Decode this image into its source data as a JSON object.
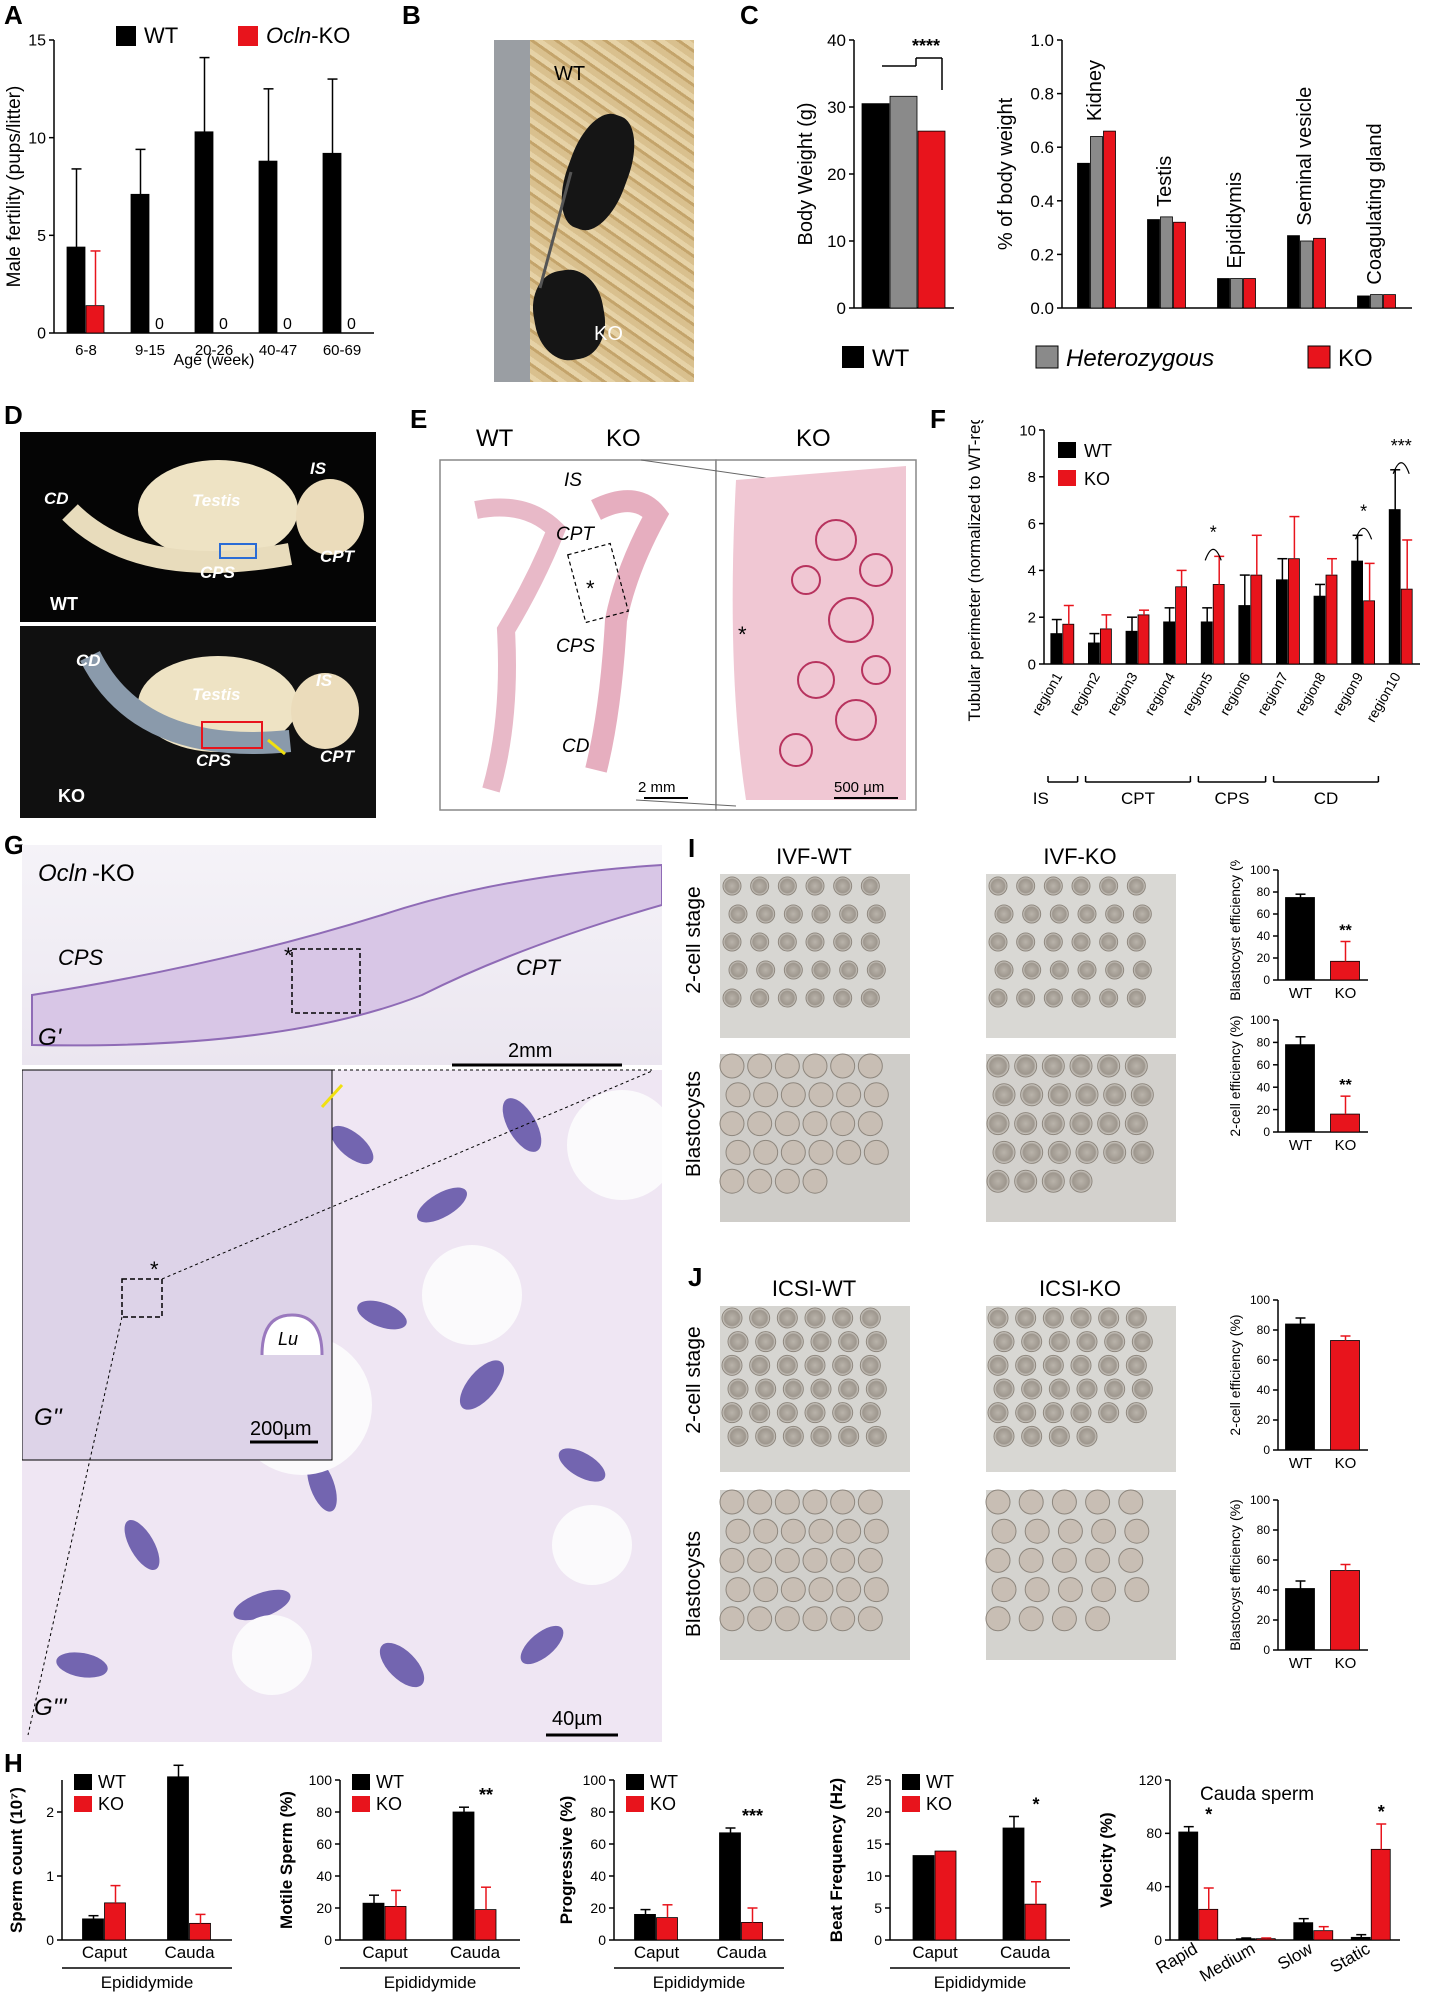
{
  "panels": {
    "A": "A",
    "B": "B",
    "C": "C",
    "D": "D",
    "E": "E",
    "F": "F",
    "G": "G",
    "H": "H",
    "I": "I",
    "J": "J"
  },
  "colors": {
    "wt": "#000000",
    "het": "#8a8a8a",
    "ko": "#e8141c",
    "scale": "#000000"
  },
  "legend": {
    "wt": "WT",
    "ko": "KO",
    "ko_prefix": "Ocln",
    "ko_suffix": "-KO",
    "het": "Heterozygous"
  },
  "b": {
    "wt": "WT",
    "ko": "KO"
  },
  "d": {
    "cd": "CD",
    "testis": "Testis",
    "is": "IS",
    "cpt": "CPT",
    "cps": "CPS",
    "wt": "WT",
    "ko": "KO"
  },
  "e": {
    "wt": "WT",
    "ko": "KO",
    "ko2": "KO",
    "is": "IS",
    "cpt": "CPT",
    "cps": "CPS",
    "cd": "CD",
    "star": "*",
    "scale1": "2 mm",
    "scale2": "500 µm"
  },
  "g": {
    "title_prefix": "Ocln",
    "title_suffix": "-KO",
    "cps": "CPS",
    "cpt": "CPT",
    "g1": "G'",
    "g2": "G''",
    "g3": "G'''",
    "lu": "Lu",
    "star": "*",
    "s1": "2mm",
    "s2": "200µm",
    "s3": "40µm"
  },
  "i": {
    "col1": "IVF-WT",
    "col2": "IVF-KO",
    "row1": "2-cell stage",
    "row2": "Blastocysts"
  },
  "j": {
    "col1": "ICSI-WT",
    "col2": "ICSI-KO",
    "row1": "2-cell stage",
    "row2": "Blastocysts"
  },
  "f_groups": {
    "is": "IS",
    "cpt": "CPT",
    "cps": "CPS",
    "cd": "CD"
  },
  "h_group": "Epididymide",
  "chart_data": [
    {
      "id": "A",
      "type": "bar",
      "ylabel": "Male fertility (pups/litter)",
      "xlabel": "Age (week)",
      "categories": [
        "6-8",
        "9-15",
        "20-26",
        "40-47",
        "60-69"
      ],
      "ylim": [
        0,
        15
      ],
      "yticks": [
        0,
        5,
        10,
        15
      ],
      "series": [
        {
          "name": "WT",
          "values": [
            4.4,
            7.1,
            10.3,
            8.8,
            9.2
          ],
          "err": [
            4.0,
            2.3,
            3.8,
            3.7,
            3.8
          ]
        },
        {
          "name": "KO",
          "values": [
            1.4,
            0,
            0,
            0,
            0
          ],
          "err": [
            2.8,
            0,
            0,
            0,
            0
          ]
        }
      ],
      "value_labels": [
        "",
        "0",
        "0",
        "0",
        "0"
      ]
    },
    {
      "id": "C1",
      "type": "bar",
      "ylabel": "Body Weight (g)",
      "ylim": [
        0,
        40
      ],
      "yticks": [
        0,
        10,
        20,
        30,
        40
      ],
      "series": [
        {
          "name": "WT",
          "values": [
            30.5
          ]
        },
        {
          "name": "Heterozygous",
          "values": [
            31.6
          ]
        },
        {
          "name": "KO",
          "values": [
            26.4
          ]
        }
      ],
      "sig": "****"
    },
    {
      "id": "C2",
      "type": "bar",
      "ylabel": "% of body weight",
      "ylim": [
        0,
        1.0
      ],
      "yticks": [
        "0.0",
        "0.2",
        "0.4",
        "0.6",
        "0.8",
        "1.0"
      ],
      "categories": [
        "Kidney",
        "Testis",
        "Epididymis",
        "Seminal vesicle",
        "Coagulating gland"
      ],
      "series": [
        {
          "name": "WT",
          "values": [
            0.54,
            0.33,
            0.11,
            0.27,
            0.045
          ]
        },
        {
          "name": "Heterozygous",
          "values": [
            0.64,
            0.34,
            0.11,
            0.25,
            0.05
          ]
        },
        {
          "name": "KO",
          "values": [
            0.66,
            0.32,
            0.11,
            0.26,
            0.05
          ]
        }
      ]
    },
    {
      "id": "F",
      "type": "bar",
      "ylabel": "Tubular perimeter (normalized to WT-region 2)",
      "ylim": [
        0,
        10
      ],
      "yticks": [
        0,
        2,
        4,
        6,
        8,
        10
      ],
      "categories": [
        "region1",
        "region2",
        "region3",
        "region4",
        "region5",
        "region6",
        "region7",
        "region8",
        "region9",
        "region10"
      ],
      "series": [
        {
          "name": "WT",
          "values": [
            1.3,
            0.9,
            1.4,
            1.8,
            1.8,
            2.5,
            3.6,
            2.9,
            4.4,
            6.6
          ],
          "err": [
            0.6,
            0.4,
            0.6,
            0.6,
            0.6,
            1.3,
            0.9,
            0.5,
            1.1,
            1.7
          ]
        },
        {
          "name": "KO",
          "values": [
            1.7,
            1.5,
            2.1,
            3.3,
            3.4,
            3.8,
            4.5,
            3.8,
            2.7,
            3.2
          ],
          "err": [
            0.8,
            0.6,
            0.2,
            0.7,
            1.2,
            1.7,
            1.8,
            0.7,
            1.6,
            2.1
          ]
        }
      ],
      "sig": [
        {
          "at": 4,
          "label": "*"
        },
        {
          "at": 8,
          "label": "*"
        },
        {
          "at": 9,
          "label": "***"
        }
      ]
    },
    {
      "id": "I1",
      "type": "bar",
      "ylabel": "Blastocyst efficiency (%)",
      "ylim": [
        0,
        100
      ],
      "yticks": [
        0,
        20,
        40,
        60,
        80,
        100
      ],
      "categories": [
        "WT",
        "KO"
      ],
      "values": [
        75,
        17
      ],
      "err": [
        3,
        18
      ],
      "sig": "**"
    },
    {
      "id": "I2",
      "type": "bar",
      "ylabel": "2-cell efficiency (%)",
      "ylim": [
        0,
        100
      ],
      "yticks": [
        0,
        20,
        40,
        60,
        80,
        100
      ],
      "categories": [
        "WT",
        "KO"
      ],
      "values": [
        78,
        16
      ],
      "err": [
        7,
        16
      ],
      "sig": "**"
    },
    {
      "id": "J1",
      "type": "bar",
      "ylabel": "2-cell efficiency (%)",
      "ylim": [
        0,
        100
      ],
      "yticks": [
        0,
        20,
        40,
        60,
        80,
        100
      ],
      "categories": [
        "WT",
        "KO"
      ],
      "values": [
        84,
        73
      ],
      "err": [
        4,
        3
      ]
    },
    {
      "id": "J2",
      "type": "bar",
      "ylabel": "Blastocyst efficiency (%)",
      "ylim": [
        0,
        100
      ],
      "yticks": [
        0,
        20,
        40,
        60,
        80,
        100
      ],
      "categories": [
        "WT",
        "KO"
      ],
      "values": [
        41,
        53
      ],
      "err": [
        5,
        4
      ]
    },
    {
      "id": "H1",
      "type": "bar",
      "ylabel": "Sperm count (10⁷)",
      "ylim": [
        0,
        2.5
      ],
      "yticks": [
        0,
        1,
        2
      ],
      "categories": [
        "Caput",
        "Cauda"
      ],
      "series": [
        {
          "name": "WT",
          "values": [
            0.33,
            2.55
          ],
          "err": [
            0.05,
            0.18
          ]
        },
        {
          "name": "KO",
          "values": [
            0.58,
            0.26
          ],
          "err": [
            0.27,
            0.14
          ]
        }
      ],
      "sig": [
        {
          "at": 1,
          "label": "****"
        }
      ]
    },
    {
      "id": "H2",
      "type": "bar",
      "ylabel": "Motile Sperm (%)",
      "ylim": [
        0,
        100
      ],
      "yticks": [
        0,
        20,
        40,
        60,
        80,
        100
      ],
      "categories": [
        "Caput",
        "Cauda"
      ],
      "series": [
        {
          "name": "WT",
          "values": [
            23,
            80
          ],
          "err": [
            5,
            3
          ]
        },
        {
          "name": "KO",
          "values": [
            21,
            19
          ],
          "err": [
            10,
            14
          ]
        }
      ],
      "sig": [
        {
          "at": 1,
          "label": "**"
        }
      ]
    },
    {
      "id": "H3",
      "type": "bar",
      "ylabel": "Progressive (%)",
      "ylim": [
        0,
        100
      ],
      "yticks": [
        0,
        20,
        40,
        60,
        80,
        100
      ],
      "categories": [
        "Caput",
        "Cauda"
      ],
      "series": [
        {
          "name": "WT",
          "values": [
            16,
            67
          ],
          "err": [
            3,
            3
          ]
        },
        {
          "name": "KO",
          "values": [
            14,
            11
          ],
          "err": [
            8,
            9
          ]
        }
      ],
      "sig": [
        {
          "at": 1,
          "label": "***"
        }
      ]
    },
    {
      "id": "H4",
      "type": "bar",
      "ylabel": "Beat Frequency (Hz)",
      "ylim": [
        0,
        25
      ],
      "yticks": [
        0,
        5,
        10,
        15,
        20,
        25
      ],
      "categories": [
        "Caput",
        "Cauda"
      ],
      "series": [
        {
          "name": "WT",
          "values": [
            13.2,
            17.5
          ],
          "err": [
            0,
            1.8
          ]
        },
        {
          "name": "KO",
          "values": [
            13.9,
            5.6
          ],
          "err": [
            0,
            3.5
          ]
        }
      ],
      "sig": [
        {
          "at": 1,
          "label": "*"
        }
      ]
    },
    {
      "id": "H5",
      "type": "bar",
      "title": "Cauda sperm",
      "ylabel": "Velocity (%)",
      "ylim": [
        0,
        120
      ],
      "yticks": [
        0,
        40,
        80,
        120
      ],
      "categories": [
        "Rapid",
        "Medium",
        "Slow",
        "Static"
      ],
      "series": [
        {
          "name": "WT",
          "values": [
            81,
            1,
            13,
            2
          ],
          "err": [
            4,
            0.5,
            3,
            2
          ]
        },
        {
          "name": "KO",
          "values": [
            23,
            1,
            7,
            68
          ],
          "err": [
            16,
            0.5,
            3,
            19
          ]
        }
      ],
      "sig": [
        {
          "at": 0,
          "label": "*"
        },
        {
          "at": 3,
          "label": "*"
        }
      ]
    }
  ]
}
